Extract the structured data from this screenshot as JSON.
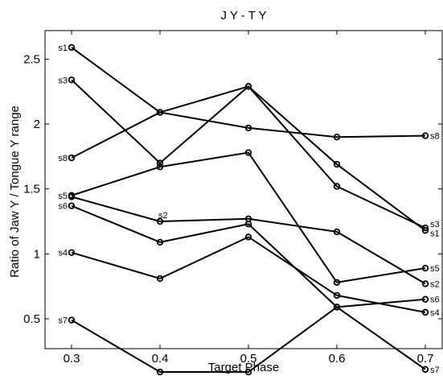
{
  "chart_data": {
    "type": "line",
    "title": "J Y - T Y",
    "xlabel": "Target Phase",
    "ylabel": "Ratio of Jaw Y / Tongue Y range",
    "xlim": [
      0.27,
      0.72
    ],
    "ylim": [
      0.27,
      2.72
    ],
    "xticks": [
      "0.3",
      "0.4",
      "0.5",
      "0.6",
      "0.7"
    ],
    "yticks": [
      "0.5",
      "1",
      "1.5",
      "2",
      "2.5"
    ],
    "grid": false,
    "marker": "circle",
    "color": "#000000",
    "x": [
      0.3,
      0.4,
      0.5,
      0.6,
      0.7
    ],
    "series": [
      {
        "name": "s1",
        "values": [
          2.59,
          2.09,
          2.29,
          1.69,
          1.18
        ]
      },
      {
        "name": "s2",
        "values": [
          1.44,
          1.25,
          1.27,
          1.17,
          0.77
        ]
      },
      {
        "name": "s3",
        "values": [
          2.34,
          1.7,
          2.29,
          1.52,
          1.2
        ]
      },
      {
        "name": "s4",
        "values": [
          1.01,
          0.81,
          1.13,
          0.68,
          0.55
        ]
      },
      {
        "name": "s5",
        "values": [
          1.45,
          1.67,
          1.78,
          0.78,
          0.89
        ]
      },
      {
        "name": "s6",
        "values": [
          1.37,
          1.09,
          1.23,
          0.59,
          0.65
        ]
      },
      {
        "name": "s7",
        "values": [
          0.49,
          0.09,
          0.09,
          0.59,
          0.11
        ]
      },
      {
        "name": "s8",
        "values": [
          1.74,
          2.09,
          1.97,
          1.9,
          1.91
        ]
      }
    ],
    "labels_left": [
      {
        "text": "s1",
        "x": 0.3,
        "y": 2.59
      },
      {
        "text": "s3",
        "x": 0.3,
        "y": 2.34
      },
      {
        "text": "s8",
        "x": 0.3,
        "y": 1.74
      },
      {
        "text": "s5",
        "x": 0.3,
        "y": 1.45
      },
      {
        "text": "s6",
        "x": 0.3,
        "y": 1.37
      },
      {
        "text": "s4",
        "x": 0.3,
        "y": 1.01
      },
      {
        "text": "s7",
        "x": 0.3,
        "y": 0.49
      }
    ],
    "labels_right": [
      {
        "text": "s8",
        "x": 0.7,
        "y": 1.91
      },
      {
        "text": "s3",
        "x": 0.7,
        "y": 1.23
      },
      {
        "text": "s1",
        "x": 0.7,
        "y": 1.16
      },
      {
        "text": "s5",
        "x": 0.7,
        "y": 0.89
      },
      {
        "text": "s2",
        "x": 0.7,
        "y": 0.77
      },
      {
        "text": "s6",
        "x": 0.7,
        "y": 0.65
      },
      {
        "text": "s4",
        "x": 0.7,
        "y": 0.55
      },
      {
        "text": "s7",
        "x": 0.7,
        "y": 0.11
      }
    ],
    "labels_inline": [
      {
        "text": "s2",
        "x": 0.4,
        "y": 1.25
      }
    ]
  }
}
